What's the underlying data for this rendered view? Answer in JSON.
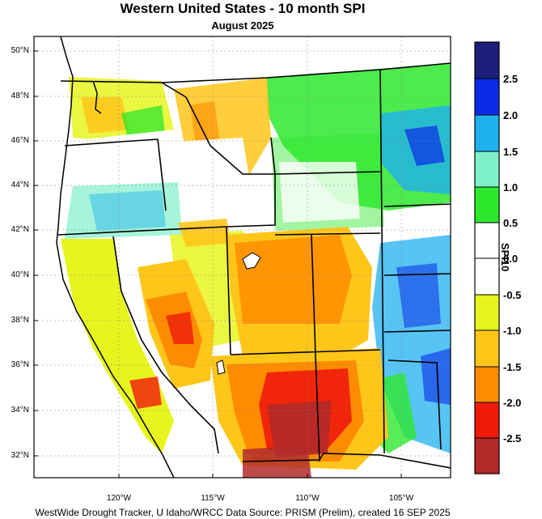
{
  "map": {
    "title": "Western United States - 10 month SPI",
    "subtitle": "August 2025",
    "footer": "WestWide Drought Tracker, U Idaho/WRCC Data Source: PRISM (Prelim), created 16 SEP 2025",
    "latitude_labels": [
      "50°N",
      "48°N",
      "46°N",
      "44°N",
      "42°N",
      "40°N",
      "38°N",
      "36°N",
      "34°N",
      "32°N"
    ],
    "longitude_labels": [
      "120°W",
      "115°W",
      "110°W",
      "105°W"
    ]
  },
  "colorbar": {
    "title": "SPI10",
    "labels": [
      "2.5",
      "2.0",
      "1.5",
      "1.0",
      "0.5",
      "0.0",
      "-0.5",
      "-1.0",
      "-1.5",
      "-2.0",
      "-2.5"
    ],
    "colors": [
      "#1b1f7a",
      "#0a2ce6",
      "#1fb0f0",
      "#7ff0cc",
      "#2ee82e",
      "#ffffff",
      "#ffffff",
      "#e6f51e",
      "#ffc61a",
      "#ff8c00",
      "#f01a0a",
      "#b32a2a"
    ]
  }
}
